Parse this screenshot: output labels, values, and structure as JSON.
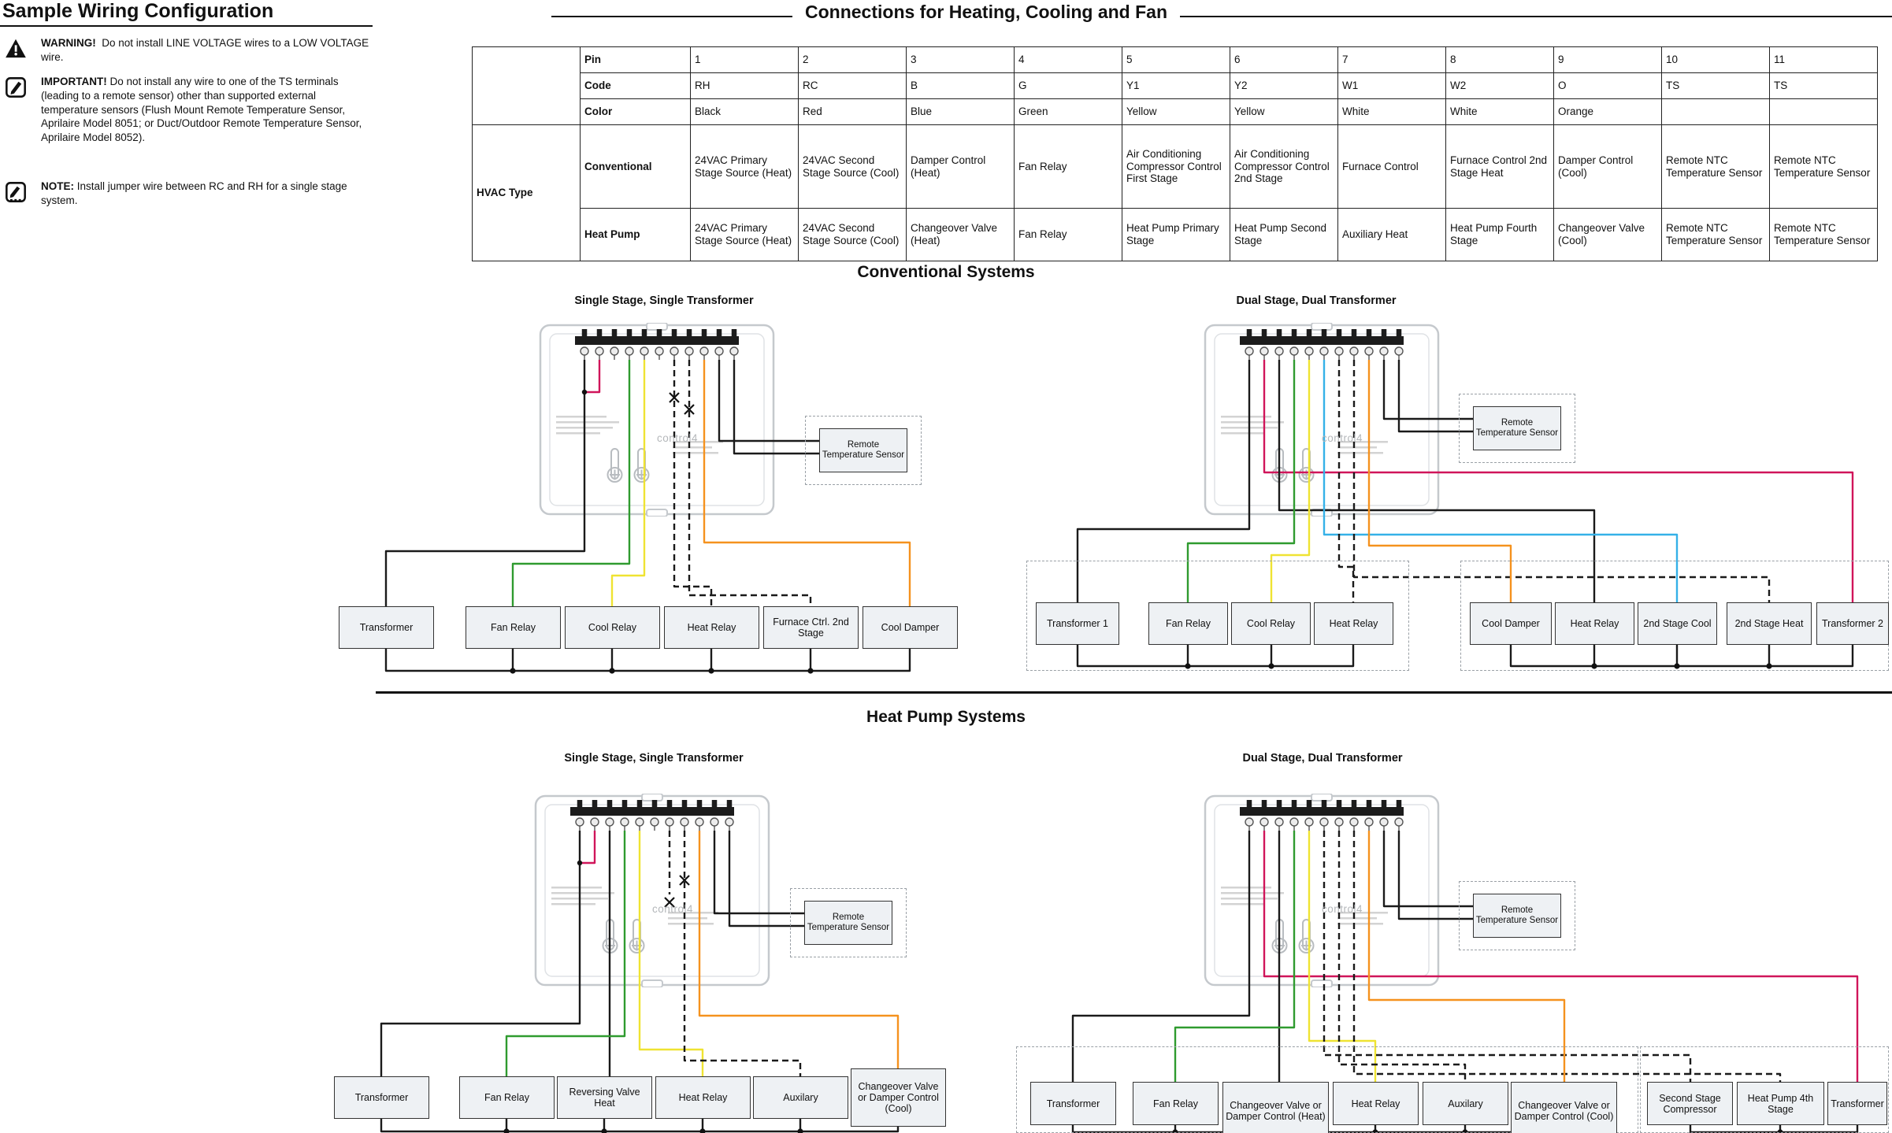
{
  "header": {
    "left_title": "Sample Wiring Configuration",
    "main_title": "Connections for Heating, Cooling and Fan"
  },
  "notes": [
    {
      "icon": "warning-triangle-icon",
      "label": "WARNING!",
      "text": "Do not install LINE VOLTAGE wires to a LOW VOLTAGE wire."
    },
    {
      "icon": "important-pencil-icon",
      "label": "IMPORTANT!",
      "text": "Do not install any wire to one of the TS terminals (leading to a remote sensor) other than supported external temperature sensors (Flush Mount Remote Temperature Sensor, Aprilaire Model 8051; or Duct/Outdoor Remote Temperature Sensor, Aprilaire Model 8052)."
    },
    {
      "icon": "note-pencil-icon",
      "label": "NOTE:",
      "text": "Install jumper wire between RC and RH for a single stage system."
    }
  ],
  "table": {
    "row_labels": {
      "pin": "Pin",
      "code": "Code",
      "color": "Color",
      "hvac_type": "HVAC Type",
      "conventional": "Conventional",
      "heat_pump": "Heat Pump"
    },
    "pins": [
      "1",
      "2",
      "3",
      "4",
      "5",
      "6",
      "7",
      "8",
      "9",
      "10",
      "11"
    ],
    "codes": [
      "RH",
      "RC",
      "B",
      "G",
      "Y1",
      "Y2",
      "W1",
      "W2",
      "O",
      "TS",
      "TS"
    ],
    "colors": [
      "Black",
      "Red",
      "Blue",
      "Green",
      "Yellow",
      "Yellow",
      "White",
      "White",
      "Orange",
      "",
      ""
    ],
    "conventional": [
      "24VAC Primary Stage Source (Heat)",
      "24VAC Second Stage Source (Cool)",
      "Damper Control (Heat)",
      "Fan Relay",
      "Air Conditioning Compressor Control First Stage",
      "Air Conditioning Compressor Control 2nd Stage",
      "Furnace Control",
      "Furnace Control 2nd Stage Heat",
      "Damper Control (Cool)",
      "Remote NTC Temperature Sensor",
      "Remote NTC Temperature Sensor"
    ],
    "heat_pump": [
      "24VAC Primary Stage Source (Heat)",
      "24VAC Second Stage Source (Cool)",
      "Changeover Valve (Heat)",
      "Fan Relay",
      "Heat Pump Primary Stage",
      "Heat Pump Second Stage",
      "Auxiliary Heat",
      "Heat Pump Fourth Stage",
      "Changeover Valve (Cool)",
      "Remote NTC Temperature Sensor",
      "Remote NTC Temperature Sensor"
    ]
  },
  "sections": {
    "conventional": {
      "title": "Conventional Systems",
      "single": {
        "title": "Single Stage, Single Transformer",
        "sensor_label": "Remote Temperature Sensor",
        "boxes": [
          "Transformer",
          "Fan Relay",
          "Cool Relay",
          "Heat Relay",
          "Furnace Ctrl. 2nd Stage",
          "Cool Damper"
        ]
      },
      "dual": {
        "title": "Dual Stage, Dual Transformer",
        "sensor_label": "Remote Temperature Sensor",
        "boxes_group1": [
          "Transformer 1",
          "Fan Relay",
          "Cool Relay",
          "Heat Relay"
        ],
        "boxes_group2": [
          "Cool Damper",
          "Heat Relay",
          "2nd Stage Cool",
          "2nd Stage Heat",
          "Transformer 2"
        ]
      }
    },
    "heat_pump": {
      "title": "Heat Pump Systems",
      "single": {
        "title": "Single Stage, Single Transformer",
        "sensor_label": "Remote Temperature Sensor",
        "boxes": [
          "Transformer",
          "Fan Relay",
          "Reversing Valve Heat",
          "Heat Relay",
          "Auxilary",
          "Changeover Valve or Damper Control (Cool)"
        ]
      },
      "dual": {
        "title": "Dual Stage, Dual Transformer",
        "sensor_label": "Remote Temperature Sensor",
        "boxes_group1": [
          "Transformer",
          "Fan Relay",
          "Changeover Valve or Damper Control (Heat)",
          "Heat Relay",
          "Auxilary",
          "Changeover Valve or Damper Control (Cool)"
        ],
        "boxes_group2": [
          "Second Stage Compressor",
          "Heat Pump 4th Stage",
          "Transformer"
        ]
      }
    }
  },
  "thermostat": {
    "brand": "control4"
  },
  "wire_colors": {
    "black": "#1a1a1a",
    "red": "#d0155a",
    "green": "#2f9b2f",
    "yellow": "#efe332",
    "orange": "#f5921e",
    "blue": "#35b1e8"
  }
}
